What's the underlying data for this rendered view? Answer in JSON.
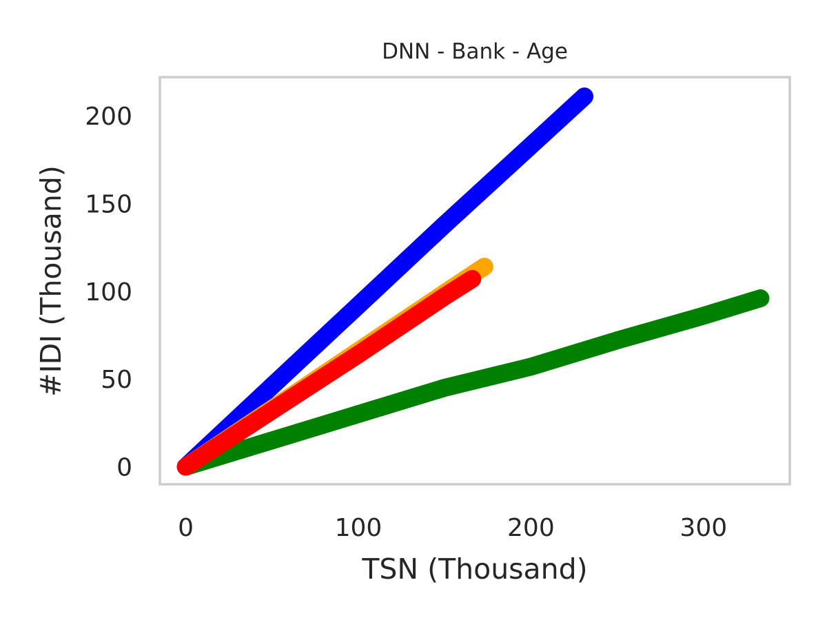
{
  "chart_data": {
    "type": "line",
    "title": "DNN - Bank - Age",
    "xlabel": "TSN (Thousand)",
    "ylabel": "#IDI (Thousand)",
    "xlim": [
      -15,
      350
    ],
    "ylim": [
      -10,
      222
    ],
    "xticks": [
      0,
      100,
      200,
      300
    ],
    "yticks": [
      0,
      50,
      100,
      150,
      200
    ],
    "grid": false,
    "series": [
      {
        "name": "green",
        "color": "#008000",
        "x": [
          0,
          50,
          100,
          150,
          175,
          200,
          250,
          300,
          333
        ],
        "y": [
          0,
          15,
          30,
          45,
          51,
          57,
          72,
          86,
          96
        ]
      },
      {
        "name": "blue",
        "color": "#0000ff",
        "x": [
          0,
          50,
          100,
          150,
          200,
          231
        ],
        "y": [
          0,
          46,
          92,
          138,
          183,
          211
        ]
      },
      {
        "name": "orange",
        "color": "#ffa500",
        "x": [
          0,
          50,
          100,
          150,
          173
        ],
        "y": [
          0,
          33,
          66,
          99,
          114
        ]
      },
      {
        "name": "red",
        "color": "#ff0000",
        "x": [
          0,
          50,
          100,
          150,
          166
        ],
        "y": [
          0,
          32,
          64,
          97,
          107
        ]
      }
    ]
  }
}
